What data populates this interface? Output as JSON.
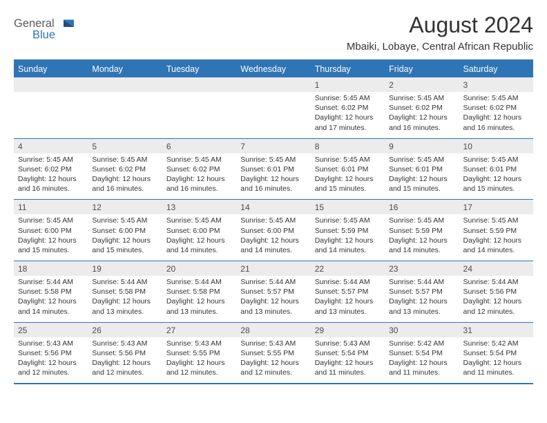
{
  "logo": {
    "text1": "General",
    "text2": "Blue"
  },
  "title": "August 2024",
  "subtitle": "Mbaiki, Lobaye, Central African Republic",
  "colors": {
    "header_bg": "#2f74b5",
    "header_text": "#ffffff",
    "daynum_bg": "#ececec",
    "border": "#2f74b5",
    "text": "#333333"
  },
  "weekdays": [
    "Sunday",
    "Monday",
    "Tuesday",
    "Wednesday",
    "Thursday",
    "Friday",
    "Saturday"
  ],
  "weeks": [
    [
      null,
      null,
      null,
      null,
      {
        "n": "1",
        "sunrise": "Sunrise: 5:45 AM",
        "sunset": "Sunset: 6:02 PM",
        "d1": "Daylight: 12 hours",
        "d2": "and 17 minutes."
      },
      {
        "n": "2",
        "sunrise": "Sunrise: 5:45 AM",
        "sunset": "Sunset: 6:02 PM",
        "d1": "Daylight: 12 hours",
        "d2": "and 16 minutes."
      },
      {
        "n": "3",
        "sunrise": "Sunrise: 5:45 AM",
        "sunset": "Sunset: 6:02 PM",
        "d1": "Daylight: 12 hours",
        "d2": "and 16 minutes."
      }
    ],
    [
      {
        "n": "4",
        "sunrise": "Sunrise: 5:45 AM",
        "sunset": "Sunset: 6:02 PM",
        "d1": "Daylight: 12 hours",
        "d2": "and 16 minutes."
      },
      {
        "n": "5",
        "sunrise": "Sunrise: 5:45 AM",
        "sunset": "Sunset: 6:02 PM",
        "d1": "Daylight: 12 hours",
        "d2": "and 16 minutes."
      },
      {
        "n": "6",
        "sunrise": "Sunrise: 5:45 AM",
        "sunset": "Sunset: 6:02 PM",
        "d1": "Daylight: 12 hours",
        "d2": "and 16 minutes."
      },
      {
        "n": "7",
        "sunrise": "Sunrise: 5:45 AM",
        "sunset": "Sunset: 6:01 PM",
        "d1": "Daylight: 12 hours",
        "d2": "and 16 minutes."
      },
      {
        "n": "8",
        "sunrise": "Sunrise: 5:45 AM",
        "sunset": "Sunset: 6:01 PM",
        "d1": "Daylight: 12 hours",
        "d2": "and 15 minutes."
      },
      {
        "n": "9",
        "sunrise": "Sunrise: 5:45 AM",
        "sunset": "Sunset: 6:01 PM",
        "d1": "Daylight: 12 hours",
        "d2": "and 15 minutes."
      },
      {
        "n": "10",
        "sunrise": "Sunrise: 5:45 AM",
        "sunset": "Sunset: 6:01 PM",
        "d1": "Daylight: 12 hours",
        "d2": "and 15 minutes."
      }
    ],
    [
      {
        "n": "11",
        "sunrise": "Sunrise: 5:45 AM",
        "sunset": "Sunset: 6:00 PM",
        "d1": "Daylight: 12 hours",
        "d2": "and 15 minutes."
      },
      {
        "n": "12",
        "sunrise": "Sunrise: 5:45 AM",
        "sunset": "Sunset: 6:00 PM",
        "d1": "Daylight: 12 hours",
        "d2": "and 15 minutes."
      },
      {
        "n": "13",
        "sunrise": "Sunrise: 5:45 AM",
        "sunset": "Sunset: 6:00 PM",
        "d1": "Daylight: 12 hours",
        "d2": "and 14 minutes."
      },
      {
        "n": "14",
        "sunrise": "Sunrise: 5:45 AM",
        "sunset": "Sunset: 6:00 PM",
        "d1": "Daylight: 12 hours",
        "d2": "and 14 minutes."
      },
      {
        "n": "15",
        "sunrise": "Sunrise: 5:45 AM",
        "sunset": "Sunset: 5:59 PM",
        "d1": "Daylight: 12 hours",
        "d2": "and 14 minutes."
      },
      {
        "n": "16",
        "sunrise": "Sunrise: 5:45 AM",
        "sunset": "Sunset: 5:59 PM",
        "d1": "Daylight: 12 hours",
        "d2": "and 14 minutes."
      },
      {
        "n": "17",
        "sunrise": "Sunrise: 5:45 AM",
        "sunset": "Sunset: 5:59 PM",
        "d1": "Daylight: 12 hours",
        "d2": "and 14 minutes."
      }
    ],
    [
      {
        "n": "18",
        "sunrise": "Sunrise: 5:44 AM",
        "sunset": "Sunset: 5:58 PM",
        "d1": "Daylight: 12 hours",
        "d2": "and 14 minutes."
      },
      {
        "n": "19",
        "sunrise": "Sunrise: 5:44 AM",
        "sunset": "Sunset: 5:58 PM",
        "d1": "Daylight: 12 hours",
        "d2": "and 13 minutes."
      },
      {
        "n": "20",
        "sunrise": "Sunrise: 5:44 AM",
        "sunset": "Sunset: 5:58 PM",
        "d1": "Daylight: 12 hours",
        "d2": "and 13 minutes."
      },
      {
        "n": "21",
        "sunrise": "Sunrise: 5:44 AM",
        "sunset": "Sunset: 5:57 PM",
        "d1": "Daylight: 12 hours",
        "d2": "and 13 minutes."
      },
      {
        "n": "22",
        "sunrise": "Sunrise: 5:44 AM",
        "sunset": "Sunset: 5:57 PM",
        "d1": "Daylight: 12 hours",
        "d2": "and 13 minutes."
      },
      {
        "n": "23",
        "sunrise": "Sunrise: 5:44 AM",
        "sunset": "Sunset: 5:57 PM",
        "d1": "Daylight: 12 hours",
        "d2": "and 13 minutes."
      },
      {
        "n": "24",
        "sunrise": "Sunrise: 5:44 AM",
        "sunset": "Sunset: 5:56 PM",
        "d1": "Daylight: 12 hours",
        "d2": "and 12 minutes."
      }
    ],
    [
      {
        "n": "25",
        "sunrise": "Sunrise: 5:43 AM",
        "sunset": "Sunset: 5:56 PM",
        "d1": "Daylight: 12 hours",
        "d2": "and 12 minutes."
      },
      {
        "n": "26",
        "sunrise": "Sunrise: 5:43 AM",
        "sunset": "Sunset: 5:56 PM",
        "d1": "Daylight: 12 hours",
        "d2": "and 12 minutes."
      },
      {
        "n": "27",
        "sunrise": "Sunrise: 5:43 AM",
        "sunset": "Sunset: 5:55 PM",
        "d1": "Daylight: 12 hours",
        "d2": "and 12 minutes."
      },
      {
        "n": "28",
        "sunrise": "Sunrise: 5:43 AM",
        "sunset": "Sunset: 5:55 PM",
        "d1": "Daylight: 12 hours",
        "d2": "and 12 minutes."
      },
      {
        "n": "29",
        "sunrise": "Sunrise: 5:43 AM",
        "sunset": "Sunset: 5:54 PM",
        "d1": "Daylight: 12 hours",
        "d2": "and 11 minutes."
      },
      {
        "n": "30",
        "sunrise": "Sunrise: 5:42 AM",
        "sunset": "Sunset: 5:54 PM",
        "d1": "Daylight: 12 hours",
        "d2": "and 11 minutes."
      },
      {
        "n": "31",
        "sunrise": "Sunrise: 5:42 AM",
        "sunset": "Sunset: 5:54 PM",
        "d1": "Daylight: 12 hours",
        "d2": "and 11 minutes."
      }
    ]
  ]
}
